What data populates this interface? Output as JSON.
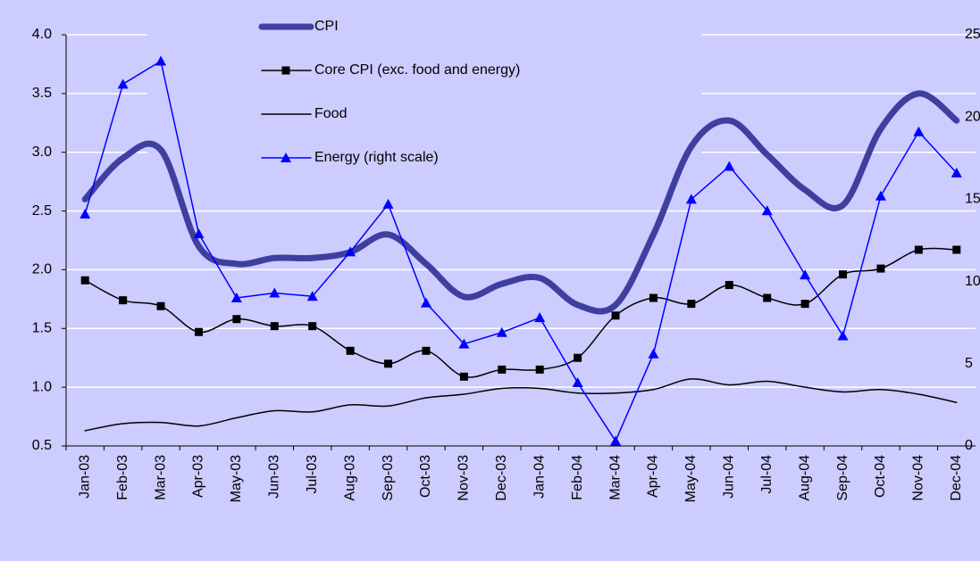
{
  "chart_data": {
    "type": "line",
    "categories": [
      "Jan-03",
      "Feb-03",
      "Mar-03",
      "Apr-03",
      "May-03",
      "Jun-03",
      "Jul-03",
      "Aug-03",
      "Sep-03",
      "Oct-03",
      "Nov-03",
      "Dec-03",
      "Jan-04",
      "Feb-04",
      "Mar-04",
      "Apr-04",
      "May-04",
      "Jun-04",
      "Jul-04",
      "Aug-04",
      "Sep-04",
      "Oct-04",
      "Nov-04",
      "Dec-04"
    ],
    "series": [
      {
        "name": "CPI",
        "color": "#3f3f9f",
        "width": 7,
        "smooth": true,
        "marker": "none",
        "values": [
          2.6,
          2.95,
          3.02,
          2.2,
          2.05,
          2.1,
          2.1,
          2.15,
          2.3,
          2.05,
          1.77,
          1.88,
          1.93,
          1.7,
          1.7,
          2.3,
          3.05,
          3.27,
          2.98,
          2.68,
          2.55,
          3.2,
          3.5,
          3.27
        ]
      },
      {
        "name": "Core CPI (exc. food and energy)",
        "color": "#000000",
        "width": 1.5,
        "smooth": true,
        "marker": "square",
        "values": [
          1.91,
          1.74,
          1.69,
          1.47,
          1.58,
          1.52,
          1.52,
          1.31,
          1.2,
          1.31,
          1.09,
          1.15,
          1.15,
          1.25,
          1.61,
          1.76,
          1.71,
          1.87,
          1.76,
          1.71,
          1.96,
          2.01,
          2.17,
          2.17
        ]
      },
      {
        "name": "Food",
        "color": "#000000",
        "width": 1.5,
        "smooth": true,
        "marker": "none",
        "values": [
          0.63,
          0.69,
          0.7,
          0.67,
          0.74,
          0.8,
          0.79,
          0.85,
          0.84,
          0.91,
          0.94,
          0.99,
          0.99,
          0.95,
          0.95,
          0.98,
          1.07,
          1.02,
          1.05,
          1.0,
          0.96,
          0.98,
          0.94,
          0.87
        ]
      },
      {
        "name": "Energy (right scale)",
        "color": "#0000ff",
        "width": 1.5,
        "smooth": false,
        "marker": "triangle",
        "axis": "y2",
        "values": [
          14.1,
          22.0,
          23.4,
          12.9,
          9.0,
          9.3,
          9.1,
          11.8,
          14.7,
          8.7,
          6.2,
          6.9,
          7.8,
          3.85,
          0.3,
          5.6,
          15.0,
          17.0,
          14.3,
          10.4,
          6.7,
          15.2,
          19.1,
          16.6
        ]
      }
    ],
    "ylim": [
      0.5,
      4.0
    ],
    "yticks": [
      {
        "value": 0.5,
        "label": "0.5"
      },
      {
        "value": 1.0,
        "label": "1.0"
      },
      {
        "value": 1.5,
        "label": "1.5"
      },
      {
        "value": 2.0,
        "label": "2.0"
      },
      {
        "value": 2.5,
        "label": "2.5"
      },
      {
        "value": 3.0,
        "label": "3.0"
      },
      {
        "value": 3.5,
        "label": "3.5"
      },
      {
        "value": 4.0,
        "label": "4.0"
      }
    ],
    "y2lim": [
      0,
      25
    ],
    "y2ticks": [
      0,
      5,
      10,
      15,
      20,
      25
    ],
    "grid": true,
    "legend": "top",
    "background": "#ccccff"
  }
}
